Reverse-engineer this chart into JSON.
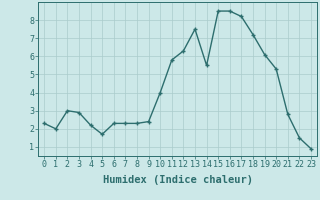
{
  "x": [
    0,
    1,
    2,
    3,
    4,
    5,
    6,
    7,
    8,
    9,
    10,
    11,
    12,
    13,
    14,
    15,
    16,
    17,
    18,
    19,
    20,
    21,
    22,
    23
  ],
  "y": [
    2.3,
    2.0,
    3.0,
    2.9,
    2.2,
    1.7,
    2.3,
    2.3,
    2.3,
    2.4,
    4.0,
    5.8,
    6.3,
    7.5,
    5.5,
    8.5,
    8.5,
    8.2,
    7.2,
    6.1,
    5.3,
    2.8,
    1.5,
    0.9
  ],
  "xlabel": "Humidex (Indice chaleur)",
  "line_color": "#2d6e6e",
  "marker_color": "#2d6e6e",
  "bg_color": "#cce8e8",
  "grid_color": "#aacccc",
  "ylim": [
    0.5,
    9.0
  ],
  "xlim": [
    -0.5,
    23.5
  ],
  "yticks": [
    1,
    2,
    3,
    4,
    5,
    6,
    7,
    8
  ],
  "xticks": [
    0,
    1,
    2,
    3,
    4,
    5,
    6,
    7,
    8,
    9,
    10,
    11,
    12,
    13,
    14,
    15,
    16,
    17,
    18,
    19,
    20,
    21,
    22,
    23
  ],
  "tick_fontsize": 6,
  "xlabel_fontsize": 7.5,
  "xlabel_color": "#2d6e6e",
  "tick_color": "#2d6e6e",
  "axis_color": "#2d6e6e",
  "marker_size": 2.5,
  "linewidth": 1.0
}
